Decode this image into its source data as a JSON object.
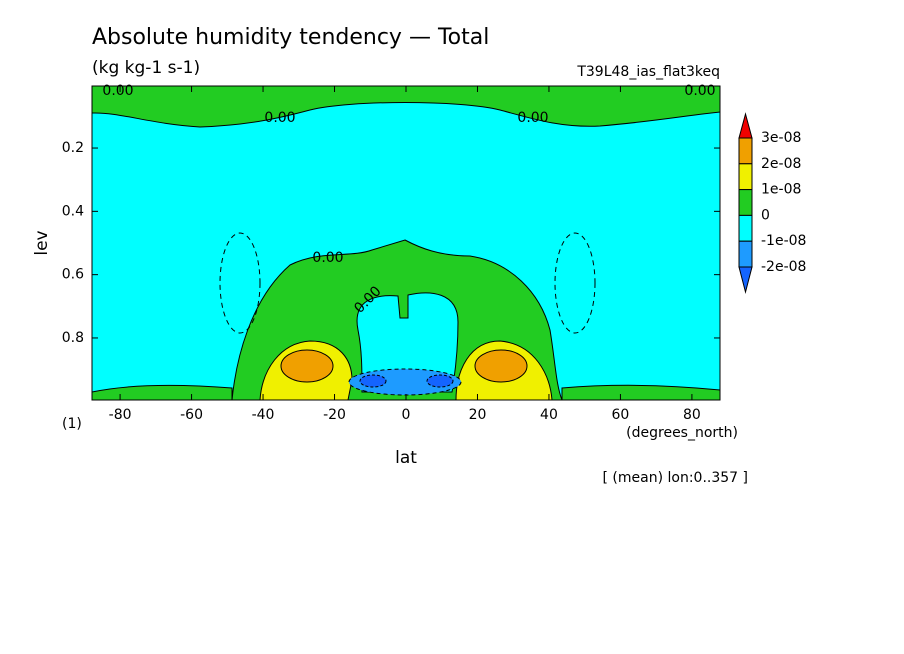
{
  "chart_data": {
    "type": "contour",
    "title": "Absolute humidity tendency — Total",
    "subtitle": "(kg kg-1 s-1)",
    "experiment": "T39L48_ias_flat3keq",
    "x_label": "lat",
    "x_unit": "(degrees_north)",
    "y_label": "lev",
    "y_unit": "(1)",
    "note": "[ (mean) lon:0..357 ]",
    "xlim": [
      -87.86,
      87.86
    ],
    "xticks": [
      -80,
      -60,
      -40,
      -20,
      0,
      20,
      40,
      60,
      80
    ],
    "ylim": [
      0.996,
      0.004
    ],
    "yticks": [
      0.2,
      0.4,
      0.6,
      0.8
    ],
    "contour_labels": [
      "0.00",
      "0.00",
      "0.00",
      "0.00",
      "0.00",
      "0.00"
    ],
    "colorbar": {
      "levels": [
        {
          "value": 3e-08,
          "label": "3e-08"
        },
        {
          "value": 2e-08,
          "label": "2e-08"
        },
        {
          "value": 1e-08,
          "label": "1e-08"
        },
        0,
        {
          "value": -1e-08,
          "label": "-1e-08"
        },
        {
          "value": -2e-08,
          "label": "-2e-08"
        }
      ],
      "colors": [
        "#f00000",
        "#f0a000",
        "#f0f000",
        "#22cc22",
        "#00ffff",
        "#1e9bff",
        "#1464ff"
      ]
    }
  }
}
